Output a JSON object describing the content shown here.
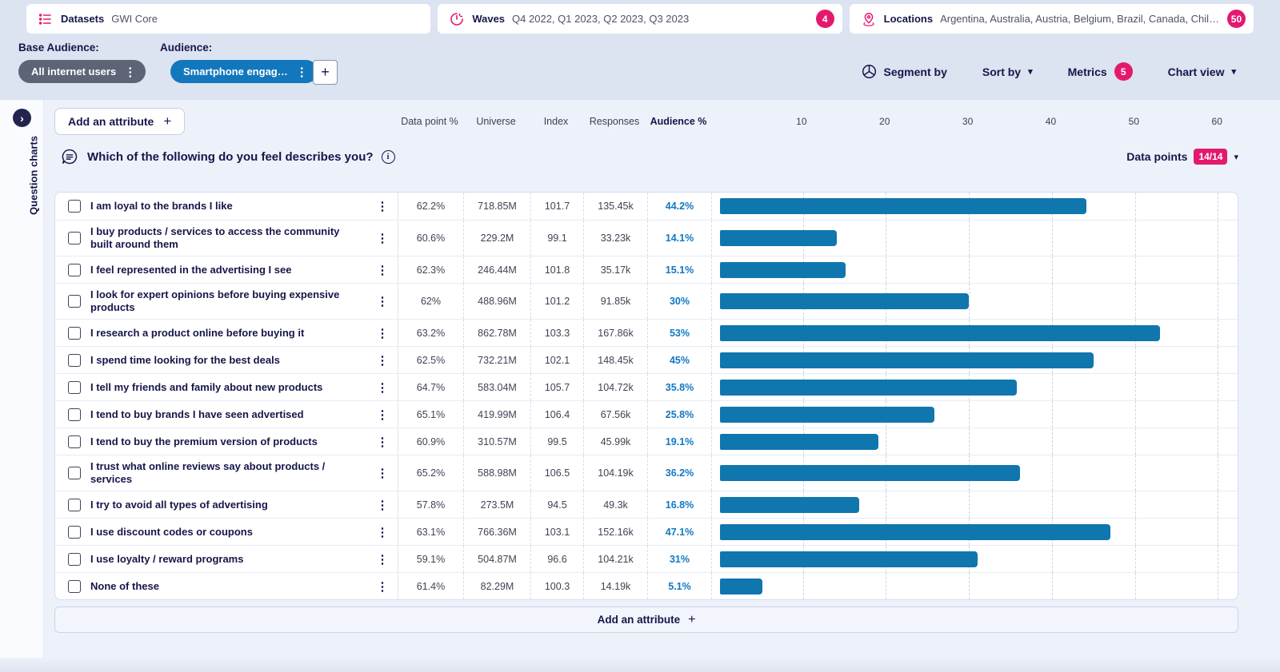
{
  "topbar": {
    "datasets": {
      "label": "Datasets",
      "value": "GWI Core"
    },
    "waves": {
      "label": "Waves",
      "value": "Q4 2022, Q1 2023, Q2 2023, Q3 2023",
      "badge": "4"
    },
    "locations": {
      "label": "Locations",
      "value": "Argentina, Australia, Austria, Belgium, Brazil, Canada, Chile, …",
      "badge": "50"
    }
  },
  "audience_bar": {
    "base_label": "Base Audience:",
    "audience_label": "Audience:",
    "base_chip": "All internet users",
    "audience_chip": "Smartphone engag…",
    "add_button": "+"
  },
  "toolbar": {
    "segment_by": "Segment by",
    "sort_by": "Sort by",
    "metrics": "Metrics",
    "metrics_badge": "5",
    "chart_view": "Chart view"
  },
  "sidebar": {
    "label": "Question charts"
  },
  "table_header": {
    "add_attribute": "Add an attribute",
    "columns": [
      "Data point %",
      "Universe",
      "Index",
      "Responses",
      "Audience %"
    ]
  },
  "question": {
    "title": "Which of the following do you feel describes you?",
    "data_points_label": "Data points",
    "data_points_badge": "14/14"
  },
  "footer": {
    "add_attribute": "Add an attribute"
  },
  "colors": {
    "accent_pink": "#E3196E",
    "bar_blue": "#1076AE",
    "audience_blue": "#1178C2",
    "navy": "#16164A",
    "topbar_bg": "#DCE3F1",
    "page_bg": "#EDF1F9"
  },
  "chart_data": {
    "type": "bar",
    "orientation": "horizontal",
    "title": "Which of the following do you feel describes you?",
    "value_label": "Audience %",
    "xlim": [
      0,
      62
    ],
    "ticks": [
      10,
      20,
      30,
      40,
      50,
      60
    ],
    "grid": "dashed-vertical",
    "rows": [
      {
        "label": "I am loyal to the brands I like",
        "data_point_pct": "62.2%",
        "universe": "718.85M",
        "index": "101.7",
        "responses": "135.45k",
        "audience_pct": "44.2%",
        "value": 44.2
      },
      {
        "label": "I buy products / services to access the community built around them",
        "data_point_pct": "60.6%",
        "universe": "229.2M",
        "index": "99.1",
        "responses": "33.23k",
        "audience_pct": "14.1%",
        "value": 14.1
      },
      {
        "label": "I feel represented in the advertising I see",
        "data_point_pct": "62.3%",
        "universe": "246.44M",
        "index": "101.8",
        "responses": "35.17k",
        "audience_pct": "15.1%",
        "value": 15.1
      },
      {
        "label": "I look for expert opinions before buying expensive products",
        "data_point_pct": "62%",
        "universe": "488.96M",
        "index": "101.2",
        "responses": "91.85k",
        "audience_pct": "30%",
        "value": 30
      },
      {
        "label": "I research a product online before buying it",
        "data_point_pct": "63.2%",
        "universe": "862.78M",
        "index": "103.3",
        "responses": "167.86k",
        "audience_pct": "53%",
        "value": 53
      },
      {
        "label": "I spend time looking for the best deals",
        "data_point_pct": "62.5%",
        "universe": "732.21M",
        "index": "102.1",
        "responses": "148.45k",
        "audience_pct": "45%",
        "value": 45
      },
      {
        "label": "I tell my friends and family about new products",
        "data_point_pct": "64.7%",
        "universe": "583.04M",
        "index": "105.7",
        "responses": "104.72k",
        "audience_pct": "35.8%",
        "value": 35.8
      },
      {
        "label": "I tend to buy brands I have seen advertised",
        "data_point_pct": "65.1%",
        "universe": "419.99M",
        "index": "106.4",
        "responses": "67.56k",
        "audience_pct": "25.8%",
        "value": 25.8
      },
      {
        "label": "I tend to buy the premium version of products",
        "data_point_pct": "60.9%",
        "universe": "310.57M",
        "index": "99.5",
        "responses": "45.99k",
        "audience_pct": "19.1%",
        "value": 19.1
      },
      {
        "label": "I trust what online reviews say about products / services",
        "data_point_pct": "65.2%",
        "universe": "588.98M",
        "index": "106.5",
        "responses": "104.19k",
        "audience_pct": "36.2%",
        "value": 36.2
      },
      {
        "label": "I try to avoid all types of advertising",
        "data_point_pct": "57.8%",
        "universe": "273.5M",
        "index": "94.5",
        "responses": "49.3k",
        "audience_pct": "16.8%",
        "value": 16.8
      },
      {
        "label": "I use discount codes or coupons",
        "data_point_pct": "63.1%",
        "universe": "766.36M",
        "index": "103.1",
        "responses": "152.16k",
        "audience_pct": "47.1%",
        "value": 47.1
      },
      {
        "label": "I use loyalty / reward programs",
        "data_point_pct": "59.1%",
        "universe": "504.87M",
        "index": "96.6",
        "responses": "104.21k",
        "audience_pct": "31%",
        "value": 31
      },
      {
        "label": "None of these",
        "data_point_pct": "61.4%",
        "universe": "82.29M",
        "index": "100.3",
        "responses": "14.19k",
        "audience_pct": "5.1%",
        "value": 5.1
      }
    ]
  }
}
